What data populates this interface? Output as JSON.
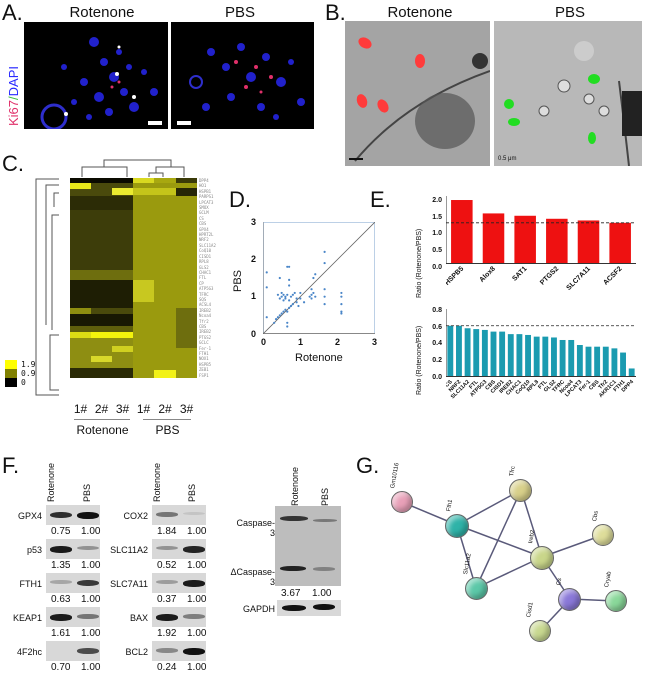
{
  "panels": {
    "A": {
      "label": "A.",
      "headers": [
        "Rotenone",
        "PBS"
      ],
      "ylabel_ki67": "Ki67",
      "ylabel_sep": "/",
      "ylabel_dapi": "DAPI",
      "colors": {
        "ki67": "#e0306a",
        "dapi": "#2a2aff",
        "sep": "#3cbf3c"
      }
    },
    "B": {
      "label": "B.",
      "headers": [
        "Rotenone",
        "PBS"
      ],
      "arrow_colors": {
        "rotenone": "#ff3b3b",
        "pbs": "#22dd22"
      },
      "scale_text": "0.5 μm"
    },
    "C": {
      "label": "C.",
      "legend": [
        "1.9",
        "0.9",
        "0"
      ],
      "legend_colors": [
        "#ffff00",
        "#808000",
        "#000000"
      ],
      "columns": [
        "1#",
        "2#",
        "3#",
        "1#",
        "2#",
        "3#"
      ],
      "groups": [
        "Rotenone",
        "PBS"
      ],
      "genes": [
        "DPP4",
        "HO1",
        "HSPB1",
        "PARPS1",
        "LPCAT3",
        "SMOX",
        "GCLM",
        "CS",
        "CBS",
        "GPX4",
        "HPRT2L",
        "NRF2",
        "SLC11A2",
        "CoQ10",
        "CISD1",
        "RPL8",
        "GLS2",
        "CHAC1",
        "FTL",
        "CP",
        "ATP5G3",
        "TFRC",
        "SQS",
        "ACSL4",
        "IREB2",
        "Ncoa4",
        "Tfr2",
        "CBS",
        "IREB2",
        "PTGS2",
        "GCLC",
        "Fer-1",
        "FTH1",
        "NOX1",
        "HSPB5",
        "ZEB1",
        "FSP1",
        "ACSF2",
        "PTGS2",
        "SLC7A11",
        "SAT1",
        "Alox8",
        "AKR1C1",
        "AKR1C1"
      ]
    },
    "D": {
      "label": "D.",
      "xlabel": "Rotenone",
      "ylabel": "PBS",
      "xticks": [
        "0",
        "1",
        "2",
        "3"
      ],
      "yticks": [
        "0",
        "1",
        "2",
        "3"
      ],
      "point_color": "#4a86c8"
    },
    "E": {
      "label": "E.",
      "ylabel": "Ratio (Rotenone/PBS)",
      "top_color": "#ee1111",
      "bottom_color": "#1a9bb0",
      "top_yticks": [
        "2.0",
        "1.5",
        "1.0",
        "0.5",
        "0.0"
      ],
      "bottom_yticks": [
        "0.8",
        "0.6",
        "0.4",
        "0.2",
        "0.0"
      ]
    },
    "F": {
      "label": "F.",
      "lanes": [
        "Rotenone",
        "PBS"
      ],
      "col1": [
        {
          "name": "GPX4",
          "vals": [
            "0.75",
            "1.00"
          ]
        },
        {
          "name": "p53",
          "vals": [
            "1.35",
            "1.00"
          ]
        },
        {
          "name": "FTH1",
          "vals": [
            "0.63",
            "1.00"
          ]
        },
        {
          "name": "KEAP1",
          "vals": [
            "1.61",
            "1.00"
          ]
        },
        {
          "name": "4F2hc",
          "vals": [
            "0.70",
            "1.00"
          ]
        }
      ],
      "col2": [
        {
          "name": "COX2",
          "vals": [
            "1.84",
            "1.00"
          ]
        },
        {
          "name": "SLC11A2",
          "vals": [
            "0.52",
            "1.00"
          ]
        },
        {
          "name": "SLC7A11",
          "vals": [
            "0.37",
            "1.00"
          ]
        },
        {
          "name": "BAX",
          "vals": [
            "1.92",
            "1.00"
          ]
        },
        {
          "name": "BCL2",
          "vals": [
            "0.24",
            "1.00"
          ]
        }
      ],
      "caspase": {
        "full": "Caspase-3",
        "cleaved": "ΔCaspase-3",
        "vals": [
          "3.67",
          "1.00"
        ],
        "loading": "GAPDH"
      }
    },
    "G": {
      "label": "G.",
      "nodes": [
        {
          "name": "Gm10116",
          "color": "#e8a0b8"
        },
        {
          "name": "Fth1",
          "color": "#2fb3a8"
        },
        {
          "name": "Tfrc",
          "color": "#d8d08a"
        },
        {
          "name": "Ireb2",
          "color": "#c9d68a"
        },
        {
          "name": "Cbs",
          "color": "#dedd9a"
        },
        {
          "name": "Slc11a2",
          "color": "#5cc8a8"
        },
        {
          "name": "Cs",
          "color": "#8a78d8"
        },
        {
          "name": "Cryab",
          "color": "#8ad89a"
        },
        {
          "name": "Cisd1",
          "color": "#c8d890"
        }
      ]
    }
  },
  "chart_data": [
    {
      "panel": "D",
      "type": "scatter",
      "title": "",
      "xlabel": "Rotenone",
      "ylabel": "PBS",
      "xlim": [
        0,
        3
      ],
      "ylim": [
        0,
        3
      ],
      "reference_line": "y = x",
      "points": [
        [
          0.1,
          1.65
        ],
        [
          0.1,
          1.25
        ],
        [
          0.1,
          0.45
        ],
        [
          0.45,
          1.5
        ],
        [
          0.65,
          1.8
        ],
        [
          0.7,
          1.8
        ],
        [
          0.7,
          1.45
        ],
        [
          0.7,
          1.3
        ],
        [
          0.4,
          1.05
        ],
        [
          0.45,
          0.95
        ],
        [
          0.5,
          1.0
        ],
        [
          0.5,
          1.1
        ],
        [
          0.55,
          0.9
        ],
        [
          0.55,
          1.05
        ],
        [
          0.6,
          1.0
        ],
        [
          0.6,
          0.95
        ],
        [
          0.65,
          1.05
        ],
        [
          0.7,
          0.9
        ],
        [
          0.75,
          1.0
        ],
        [
          0.8,
          1.05
        ],
        [
          0.85,
          1.1
        ],
        [
          1.0,
          1.1
        ],
        [
          0.9,
          0.95
        ],
        [
          0.3,
          0.3
        ],
        [
          0.35,
          0.4
        ],
        [
          0.4,
          0.45
        ],
        [
          0.45,
          0.5
        ],
        [
          0.5,
          0.55
        ],
        [
          0.55,
          0.6
        ],
        [
          0.6,
          0.65
        ],
        [
          0.65,
          0.6
        ],
        [
          0.7,
          0.7
        ],
        [
          0.75,
          0.75
        ],
        [
          0.8,
          0.8
        ],
        [
          0.9,
          0.85
        ],
        [
          1.0,
          0.95
        ],
        [
          0.65,
          0.3
        ],
        [
          0.65,
          0.2
        ],
        [
          0.95,
          0.75
        ],
        [
          1.1,
          0.85
        ],
        [
          1.25,
          1.0
        ],
        [
          1.3,
          1.05
        ],
        [
          1.35,
          1.1
        ],
        [
          1.3,
          0.95
        ],
        [
          1.4,
          1.0
        ],
        [
          1.3,
          1.2
        ],
        [
          1.35,
          1.5
        ],
        [
          1.4,
          1.6
        ],
        [
          1.65,
          2.2
        ],
        [
          1.65,
          1.9
        ],
        [
          1.65,
          1.2
        ],
        [
          1.65,
          1.0
        ],
        [
          1.65,
          0.8
        ],
        [
          2.1,
          1.1
        ],
        [
          2.1,
          1.0
        ],
        [
          2.1,
          0.8
        ],
        [
          2.1,
          0.6
        ],
        [
          2.1,
          0.55
        ]
      ]
    },
    {
      "panel": "E-top",
      "type": "bar",
      "title": "",
      "ylabel": "Ratio (Rotenone/PBS)",
      "categories": [
        "HSPB5",
        "Alox8",
        "SAT1",
        "PTGS2",
        "SLC7A11",
        "ACSF2"
      ],
      "values": [
        1.88,
        1.48,
        1.41,
        1.32,
        1.27,
        1.2
      ],
      "ylim": [
        0,
        2.0
      ],
      "threshold": 1.2,
      "color": "#ee1111"
    },
    {
      "panel": "E-bottom",
      "type": "bar",
      "title": "",
      "ylabel": "Ratio (Rotenone/PBS)",
      "categories": [
        "CS",
        "NRF2",
        "SLC11A2",
        "FTL",
        "ATP5G3",
        "CBS",
        "CISD1",
        "IREB2",
        "CHAC1",
        "CoQ10",
        "RPL8",
        "FTL",
        "GLS2",
        "TFRC",
        "Ncoa4",
        "LPCAT3",
        "Fer-1",
        "CBS",
        "Tfr2",
        "AKR1C1",
        "FTH1",
        "DPP4"
      ],
      "values": [
        0.6,
        0.6,
        0.57,
        0.56,
        0.55,
        0.53,
        0.53,
        0.5,
        0.5,
        0.49,
        0.47,
        0.47,
        0.46,
        0.43,
        0.43,
        0.37,
        0.35,
        0.35,
        0.35,
        0.33,
        0.28,
        0.09
      ],
      "ylim": [
        0,
        0.8
      ],
      "threshold": 0.6,
      "color": "#1a9bb0"
    },
    {
      "panel": "C",
      "type": "heatmap",
      "columns": [
        "Rotenone 1#",
        "Rotenone 2#",
        "Rotenone 3#",
        "PBS 1#",
        "PBS 2#",
        "PBS 3#"
      ],
      "color_scale": {
        "min": 0,
        "mid": 0.9,
        "max": 1.9
      }
    },
    {
      "panel": "F",
      "type": "table",
      "columns": [
        "Protein",
        "Rotenone",
        "PBS"
      ],
      "rows": [
        [
          "GPX4",
          "0.75",
          "1.00"
        ],
        [
          "p53",
          "1.35",
          "1.00"
        ],
        [
          "FTH1",
          "0.63",
          "1.00"
        ],
        [
          "KEAP1",
          "1.61",
          "1.00"
        ],
        [
          "4F2hc",
          "0.70",
          "1.00"
        ],
        [
          "COX2",
          "1.84",
          "1.00"
        ],
        [
          "SLC11A2",
          "0.52",
          "1.00"
        ],
        [
          "SLC7A11",
          "0.37",
          "1.00"
        ],
        [
          "BAX",
          "1.92",
          "1.00"
        ],
        [
          "BCL2",
          "0.24",
          "1.00"
        ],
        [
          "ΔCaspase-3",
          "3.67",
          "1.00"
        ]
      ]
    }
  ]
}
